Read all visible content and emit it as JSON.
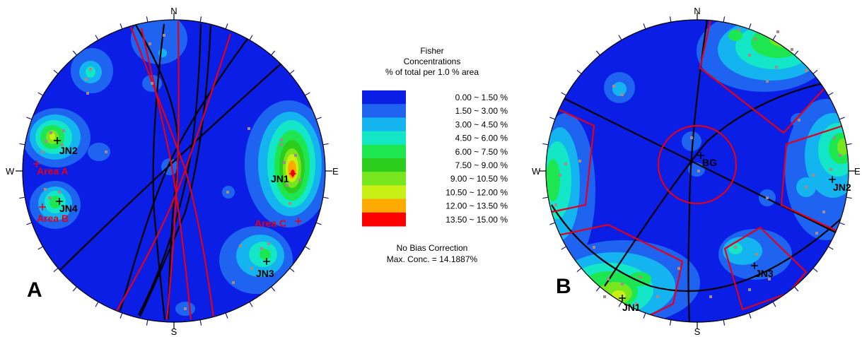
{
  "legend": {
    "title_lines": [
      "Fisher",
      "Concentrations",
      "% of total per 1.0 % area"
    ],
    "entries": [
      {
        "range": "0.00 ~  1.50 %",
        "color": "#0a1ee6"
      },
      {
        "range": "1.50 ~  3.00 %",
        "color": "#1e64f0"
      },
      {
        "range": "3.00 ~  4.50 %",
        "color": "#14b4f0"
      },
      {
        "range": "4.50 ~  6.00 %",
        "color": "#14e6c8"
      },
      {
        "range": "6.00 ~  7.50 %",
        "color": "#1ee650"
      },
      {
        "range": "7.50 ~  9.00 %",
        "color": "#2dcd1e"
      },
      {
        "range": "9.00 ~ 10.50 %",
        "color": "#78e61e"
      },
      {
        "range": "10.50 ~ 12.00 %",
        "color": "#c8f014"
      },
      {
        "range": "12.00 ~ 13.50 %",
        "color": "#ffaa00"
      },
      {
        "range": "13.50 ~ 15.00 %",
        "color": "#ff0000"
      }
    ],
    "footer_lines": [
      "No Bias Correction",
      "Max. Conc. = 14.1887%"
    ]
  },
  "panels": [
    {
      "panel_label": "A",
      "compass": {
        "n": "N",
        "s": "S",
        "e": "E",
        "w": "W"
      },
      "joint_labels": [
        "JN1",
        "JN2",
        "JN3",
        "JN4"
      ],
      "area_labels": [
        "Area A",
        "Area B",
        "Area C"
      ]
    },
    {
      "panel_label": "B",
      "compass": {
        "n": "N",
        "s": "S",
        "e": "E",
        "w": "W"
      },
      "joint_labels": [
        "JN1",
        "JN2",
        "JN3",
        "BG"
      ]
    }
  ],
  "colors": {
    "plane_black": "#000000",
    "plane_red": "#e2001a",
    "pole_marker": "#a08c8c"
  }
}
